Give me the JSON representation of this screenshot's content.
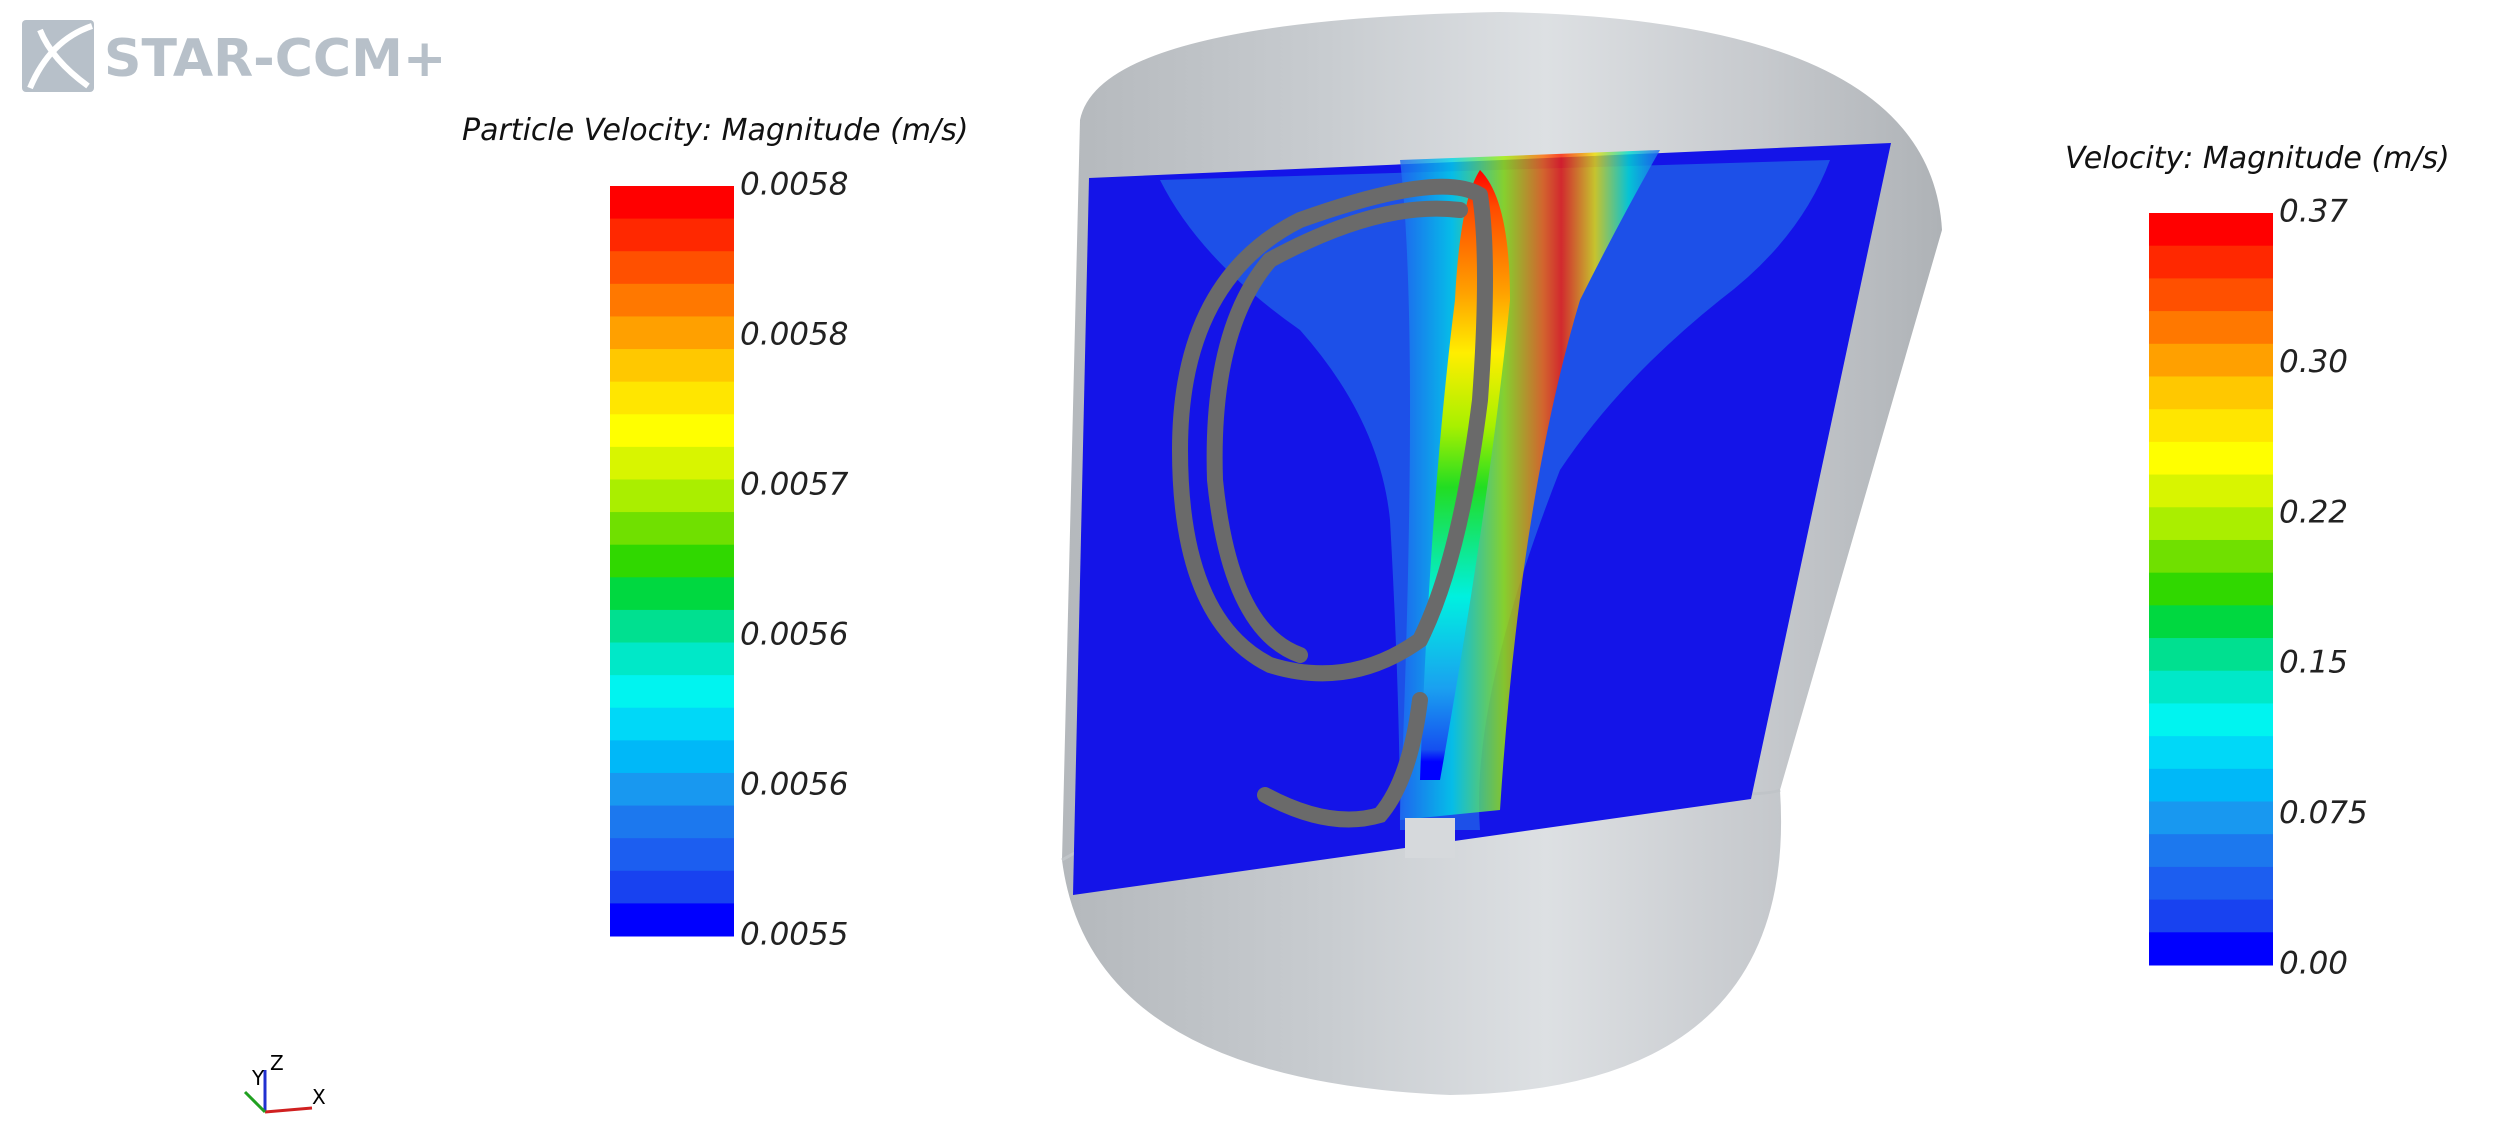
{
  "logo": "STAR-CCM+",
  "particle_legend": {
    "title": "Particle Velocity: Magnitude (m/s)",
    "labels": [
      "0.0058",
      "0.0058",
      "0.0057",
      "0.0056",
      "0.0056",
      "0.0055"
    ]
  },
  "velocity_legend": {
    "title": "Velocity: Magnitude (m/s)",
    "labels": [
      "0.37",
      "0.30",
      "0.22",
      "0.15",
      "0.075",
      "0.00"
    ]
  },
  "triad": {
    "y": "Y",
    "z": "Z",
    "x": "X"
  }
}
